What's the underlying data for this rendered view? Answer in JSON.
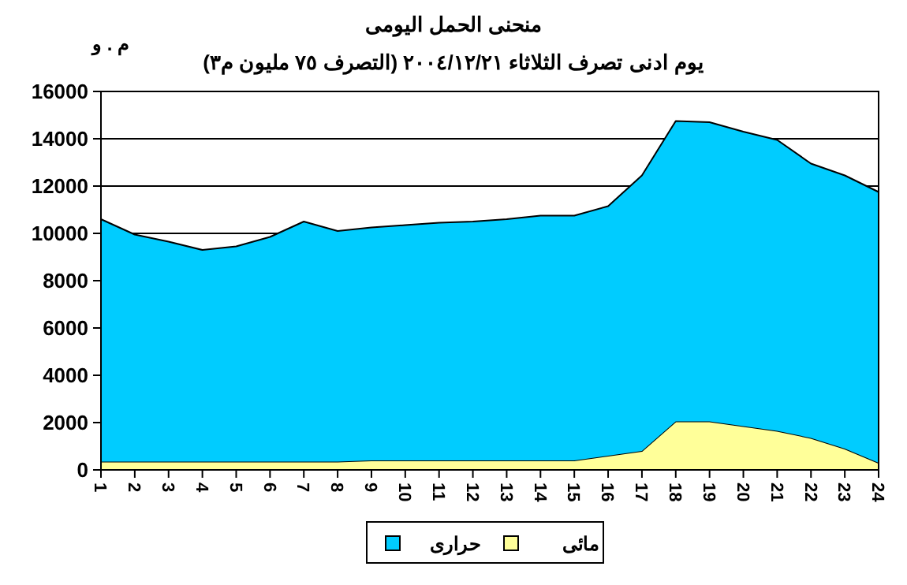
{
  "chart_data": {
    "type": "area",
    "stacked": true,
    "title": "منحنى الحمل اليومى",
    "subtitle": "يوم ادنى تصرف الثلاثاء  ٢٠٠٤/١٢/٢١ (التصرف ٧٥ مليون م٣)",
    "ylabel": "م . و",
    "categories": [
      "1",
      "2",
      "3",
      "4",
      "5",
      "6",
      "7",
      "8",
      "9",
      "10",
      "11",
      "12",
      "13",
      "14",
      "15",
      "16",
      "17",
      "18",
      "19",
      "20",
      "21",
      "22",
      "23",
      "24"
    ],
    "series": [
      {
        "name": "مائى",
        "color": "#ffff99",
        "values": [
          350,
          350,
          350,
          350,
          350,
          350,
          350,
          350,
          400,
          400,
          400,
          400,
          400,
          400,
          400,
          600,
          800,
          2050,
          2050,
          1850,
          1650,
          1350,
          900,
          300
        ]
      },
      {
        "name": "حرارى",
        "color": "#00ccff",
        "values": [
          10250,
          9600,
          9300,
          8950,
          9100,
          9500,
          10150,
          9750,
          9850,
          9950,
          10050,
          10100,
          10200,
          10350,
          10350,
          10550,
          11650,
          12700,
          12650,
          12450,
          12300,
          11600,
          11550,
          11450
        ]
      }
    ],
    "ylim": [
      0,
      16000
    ],
    "yticks": [
      0,
      2000,
      4000,
      6000,
      8000,
      10000,
      12000,
      14000,
      16000
    ],
    "grid": "y",
    "legend": "bottom"
  }
}
